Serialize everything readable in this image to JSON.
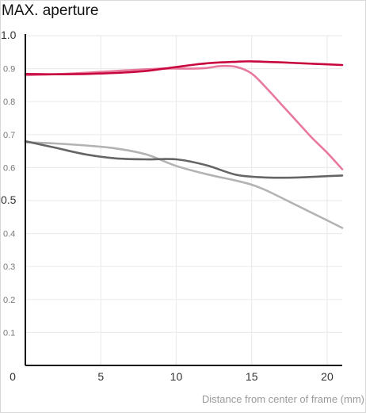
{
  "chart_data": {
    "type": "line",
    "title": "MAX. aperture",
    "xlabel": "Distance from center of frame (mm)",
    "ylabel": "",
    "xlim": [
      0,
      21
    ],
    "ylim": [
      0,
      1.0
    ],
    "grid": true,
    "x_ticks": [
      {
        "value": 0,
        "label": "0"
      },
      {
        "value": 5,
        "label": "5"
      },
      {
        "value": 10,
        "label": "10"
      },
      {
        "value": 15,
        "label": "15"
      },
      {
        "value": 20,
        "label": "20"
      }
    ],
    "y_ticks": [
      {
        "value": 0.1,
        "label": "0.1"
      },
      {
        "value": 0.2,
        "label": "0.2"
      },
      {
        "value": 0.3,
        "label": "0.3"
      },
      {
        "value": 0.4,
        "label": "0.4"
      },
      {
        "value": 0.5,
        "label": "0.5"
      },
      {
        "value": 0.6,
        "label": "0.6"
      },
      {
        "value": 0.7,
        "label": "0.7"
      },
      {
        "value": 0.8,
        "label": "0.8"
      },
      {
        "value": 0.9,
        "label": "0.9"
      },
      {
        "value": 1.0,
        "label": "1.0"
      }
    ],
    "series": [
      {
        "color": "#e8799d",
        "x": [
          0,
          3,
          6,
          9,
          11,
          12,
          13,
          14,
          15,
          16,
          17,
          18,
          19,
          20,
          21
        ],
        "y": [
          0.88,
          0.885,
          0.893,
          0.9,
          0.9,
          0.902,
          0.908,
          0.905,
          0.885,
          0.84,
          0.79,
          0.74,
          0.69,
          0.645,
          0.595
        ]
      },
      {
        "color": "#c8063e",
        "x": [
          0,
          2,
          4,
          6,
          8,
          10,
          12,
          14,
          15,
          17,
          19,
          21
        ],
        "y": [
          0.884,
          0.883,
          0.884,
          0.887,
          0.893,
          0.905,
          0.916,
          0.921,
          0.922,
          0.919,
          0.915,
          0.911
        ]
      },
      {
        "color": "#b3b3b3",
        "x": [
          0,
          2,
          4,
          6,
          8,
          10,
          12,
          14,
          15,
          16,
          18,
          20,
          21
        ],
        "y": [
          0.677,
          0.673,
          0.667,
          0.658,
          0.64,
          0.605,
          0.58,
          0.56,
          0.548,
          0.53,
          0.485,
          0.44,
          0.417
        ]
      },
      {
        "color": "#656565",
        "x": [
          0,
          2,
          4,
          6,
          8,
          10,
          12,
          14,
          16,
          18,
          20,
          21
        ],
        "y": [
          0.68,
          0.66,
          0.64,
          0.628,
          0.625,
          0.625,
          0.607,
          0.578,
          0.57,
          0.57,
          0.574,
          0.576
        ]
      }
    ]
  }
}
